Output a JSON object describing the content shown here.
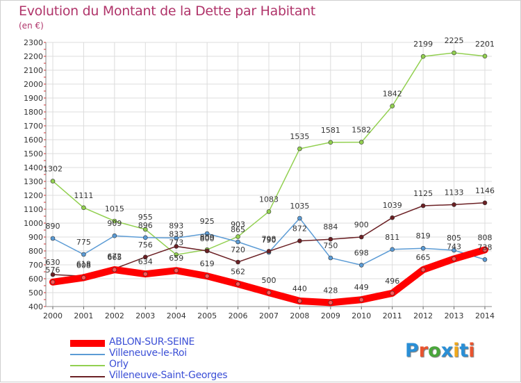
{
  "title": "Evolution du Montant de la Dette par Habitant",
  "subtitle": "(en €)",
  "logo_text": "Proxiti",
  "logo_colors": [
    "#2a8fd6",
    "#e9542f",
    "#4aa63b",
    "#2a8fd6",
    "#f0a81c",
    "#2a8fd6",
    "#e9542f"
  ],
  "chart_data": {
    "type": "line",
    "x": [
      "2000",
      "2001",
      "2002",
      "2003",
      "2004",
      "2005",
      "2006",
      "2007",
      "2008",
      "2009",
      "2010",
      "2011",
      "2012",
      "2013",
      "2014"
    ],
    "ylim": [
      400,
      2300
    ],
    "yticks": [
      400,
      500,
      600,
      700,
      800,
      900,
      1000,
      1100,
      1200,
      1300,
      1400,
      1500,
      1600,
      1700,
      1800,
      1900,
      2000,
      2100,
      2200,
      2300
    ],
    "grid": true,
    "legend_position": "bottom-left",
    "series": [
      {
        "name": "ABLON-SUR-SEINE",
        "color": "#ff0000",
        "values": [
          576,
          608,
          665,
          634,
          659,
          619,
          562,
          500,
          440,
          428,
          449,
          496,
          665,
          743,
          808
        ]
      },
      {
        "name": "Villeneuve-le-Roi",
        "color": "#5b9bd5",
        "values": [
          890,
          775,
          909,
          896,
          893,
          925,
          865,
          790,
          1035,
          750,
          698,
          811,
          819,
          805,
          738
        ]
      },
      {
        "name": "Orly",
        "color": "#92d050",
        "values": [
          1302,
          1111,
          1015,
          955,
          773,
          809,
          903,
          1083,
          1535,
          1581,
          1582,
          1842,
          2199,
          2225,
          2201
        ]
      },
      {
        "name": "Villeneuve-Saint-Georges",
        "color": "#6b2024",
        "values": [
          630,
          618,
          672,
          756,
          833,
          800,
          720,
          798,
          872,
          884,
          900,
          1039,
          1125,
          1133,
          1146
        ]
      }
    ]
  }
}
